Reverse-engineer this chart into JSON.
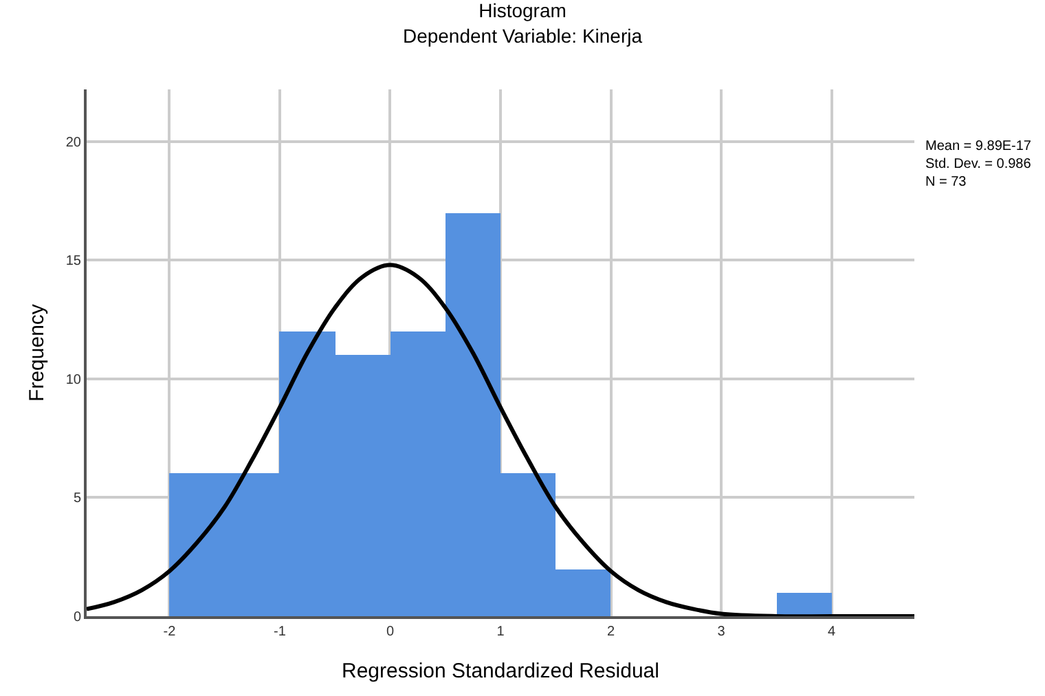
{
  "chart_data": {
    "type": "histogram",
    "title": "Histogram",
    "subtitle": "Dependent Variable: Kinerja",
    "xlabel": "Regression Standardized Residual",
    "ylabel": "Frequency",
    "series": [
      {
        "type": "histogram",
        "color": "#5591e0",
        "bins": [
          -2,
          -1.5,
          -1,
          -0.5,
          0,
          0.5,
          1,
          1.5,
          2
        ],
        "values": [
          6,
          6,
          12,
          11,
          12,
          17,
          6,
          2
        ]
      },
      {
        "type": "histogram",
        "color": "#5591e0",
        "bins": [
          3.5,
          4
        ],
        "values": [
          1
        ]
      },
      {
        "type": "line",
        "color": "#000000",
        "x": [
          -2.75,
          -2.5,
          -2.25,
          -2,
          -1.75,
          -1.5,
          -1.25,
          -1,
          -0.75,
          -0.5,
          -0.25,
          0,
          0.25,
          0.5,
          0.75,
          1,
          1.25,
          1.5,
          1.75,
          2,
          2.25,
          2.5,
          2.75,
          3,
          3.5,
          4,
          4.75
        ],
        "values": [
          0.3,
          0.6,
          1.1,
          1.9,
          3.1,
          4.6,
          6.6,
          8.8,
          11.1,
          13.0,
          14.3,
          14.8,
          14.3,
          13.0,
          11.1,
          8.8,
          6.6,
          4.6,
          3.1,
          1.9,
          1.1,
          0.6,
          0.3,
          0.1,
          0.0,
          0.0,
          0.0
        ]
      }
    ],
    "xlim": [
      -2.75,
      4.75
    ],
    "xticks": [
      -2,
      -1,
      0,
      1,
      2,
      3,
      4
    ],
    "ylim": [
      0,
      22.2
    ],
    "yticks": [
      0,
      5,
      10,
      15,
      20
    ],
    "grid": true,
    "marker": "none",
    "line_style": "solid",
    "annotations": [
      "Mean = 9.89E-17",
      "Std. Dev. = 0.986",
      "N = 73"
    ]
  }
}
